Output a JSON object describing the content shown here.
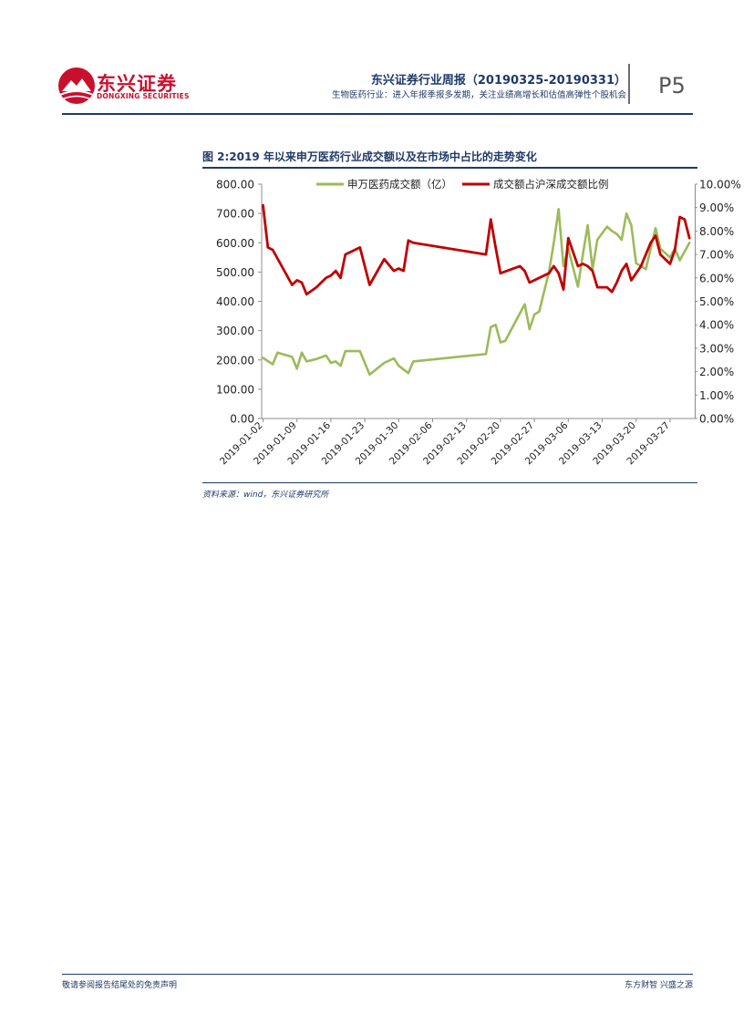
{
  "header": {
    "logo_text": "东兴证券",
    "logo_sub": "DONGXING SECURITIES",
    "report_title": "东兴证券行业周报（20190325-20190331）",
    "report_subtitle": "生物医药行业：进入年报季报多发期，关注业绩高增长和估值高弹性个股机会",
    "page_label": "P5"
  },
  "figure": {
    "title": "图 2:2019 年以来申万医药行业成交额以及在市场中占比的走势变化",
    "source": "资料来源：wind，东兴证券研究所"
  },
  "footer": {
    "left": "敬请参阅报告结尾处的免责声明",
    "right": "东方财智 兴盛之源"
  },
  "colors": {
    "brand_red": "#c8102e",
    "navy": "#1f3a68",
    "series_green": "#9bbb59",
    "series_red": "#c00000"
  },
  "chart_data": {
    "type": "line",
    "title": "",
    "x_tick_labels": [
      "2019-01-02",
      "2019-01-09",
      "2019-01-16",
      "2019-01-23",
      "2019-01-30",
      "2019-02-06",
      "2019-02-13",
      "2019-02-20",
      "2019-02-27",
      "2019-03-06",
      "2019-03-13",
      "2019-03-20",
      "2019-03-27"
    ],
    "x_range_days": [
      0,
      89
    ],
    "left_axis": {
      "min": 0,
      "max": 800,
      "step": 100,
      "tick_labels": [
        "0.00",
        "100.00",
        "200.00",
        "300.00",
        "400.00",
        "500.00",
        "600.00",
        "700.00",
        "800.00"
      ]
    },
    "right_axis": {
      "min": 0,
      "max": 10,
      "step": 1,
      "tick_labels": [
        "0.00%",
        "1.00%",
        "2.00%",
        "3.00%",
        "4.00%",
        "5.00%",
        "6.00%",
        "7.00%",
        "8.00%",
        "9.00%",
        "10.00%"
      ]
    },
    "legend_position": "top",
    "series": [
      {
        "name": "申万医药成交额（亿）",
        "axis": "left",
        "color": "#9bbb59",
        "x": [
          0,
          2,
          3,
          6,
          7,
          8,
          9,
          11,
          13,
          14,
          15,
          16,
          17,
          20,
          22,
          25,
          27,
          28,
          30,
          31,
          46,
          47,
          48,
          49,
          50,
          54,
          55,
          56,
          57,
          59,
          60,
          61,
          62,
          63,
          65,
          66,
          67,
          68,
          69,
          71,
          72,
          73,
          74,
          75,
          76,
          77,
          79,
          80,
          81,
          82,
          84,
          85,
          86,
          87,
          88
        ],
        "values": [
          207,
          185,
          225,
          210,
          170,
          225,
          195,
          203,
          215,
          190,
          195,
          180,
          230,
          230,
          150,
          190,
          205,
          180,
          155,
          195,
          220,
          312,
          320,
          260,
          265,
          390,
          305,
          355,
          365,
          500,
          600,
          715,
          520,
          580,
          450,
          560,
          660,
          510,
          610,
          655,
          640,
          630,
          610,
          700,
          660,
          530,
          510,
          580,
          650,
          580,
          550,
          580,
          540,
          570,
          600
        ]
      },
      {
        "name": "成交额占沪深成交额比例",
        "axis": "right",
        "color": "#c00000",
        "x": [
          0,
          1,
          2,
          6,
          7,
          8,
          9,
          11,
          13,
          14,
          15,
          16,
          17,
          20,
          22,
          25,
          27,
          28,
          29,
          30,
          31,
          46,
          47,
          48,
          49,
          53,
          54,
          55,
          56,
          57,
          58,
          59,
          60,
          61,
          62,
          63,
          65,
          66,
          67,
          68,
          69,
          71,
          72,
          73,
          74,
          75,
          76,
          78,
          80,
          81,
          82,
          84,
          85,
          86,
          87,
          88
        ],
        "values": [
          9.1,
          7.3,
          7.2,
          5.7,
          5.9,
          5.8,
          5.3,
          5.6,
          6.0,
          6.1,
          6.3,
          6.0,
          7.0,
          7.3,
          5.7,
          6.8,
          6.3,
          6.4,
          6.3,
          7.6,
          7.5,
          7.0,
          8.5,
          7.3,
          6.2,
          6.5,
          6.3,
          5.8,
          5.9,
          6.0,
          6.1,
          6.2,
          6.5,
          6.2,
          5.5,
          7.7,
          6.5,
          6.6,
          6.5,
          6.3,
          5.6,
          5.6,
          5.4,
          5.8,
          6.3,
          6.6,
          5.9,
          6.5,
          7.5,
          7.8,
          7.0,
          6.6,
          7.2,
          8.6,
          8.5,
          7.7
        ]
      }
    ]
  }
}
